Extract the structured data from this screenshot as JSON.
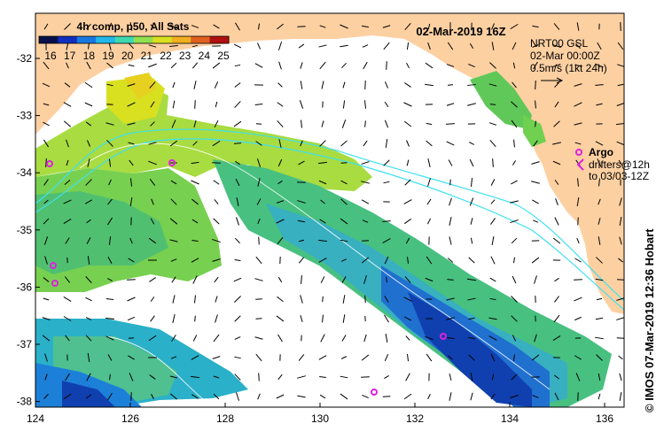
{
  "map": {
    "date_label": "02-Mar-2019 16Z",
    "colorbar": {
      "title": "4h comp, p50, All Sats",
      "ticks": [
        "16",
        "17",
        "18",
        "19",
        "20",
        "21",
        "22",
        "23",
        "24",
        "25"
      ],
      "colors": [
        "#08104a",
        "#1030c0",
        "#1878e0",
        "#20b8e8",
        "#40d8b0",
        "#90e050",
        "#d8e020",
        "#f0b020",
        "#e06020",
        "#b01010"
      ]
    },
    "current_legend": {
      "line1": "NRT00 GSL",
      "line2": "02-Mar 00:00Z",
      "line3": "0.5m/s (1kt 24h)"
    },
    "argo_legend": {
      "label": "Argo",
      "drifters_line1": "drifters@12h",
      "drifters_line2": "to 03/03-12Z",
      "argo_color": "#e020e0"
    },
    "x_ticks": [
      "124",
      "126",
      "128",
      "130",
      "132",
      "134",
      "136"
    ],
    "y_ticks": [
      "-32",
      "-33",
      "-34",
      "-35",
      "-36",
      "-37",
      "-38"
    ],
    "credit": "© IMOS 07-Mar-2019 12:36 Hobart",
    "land_color": "#fdd0a2"
  }
}
